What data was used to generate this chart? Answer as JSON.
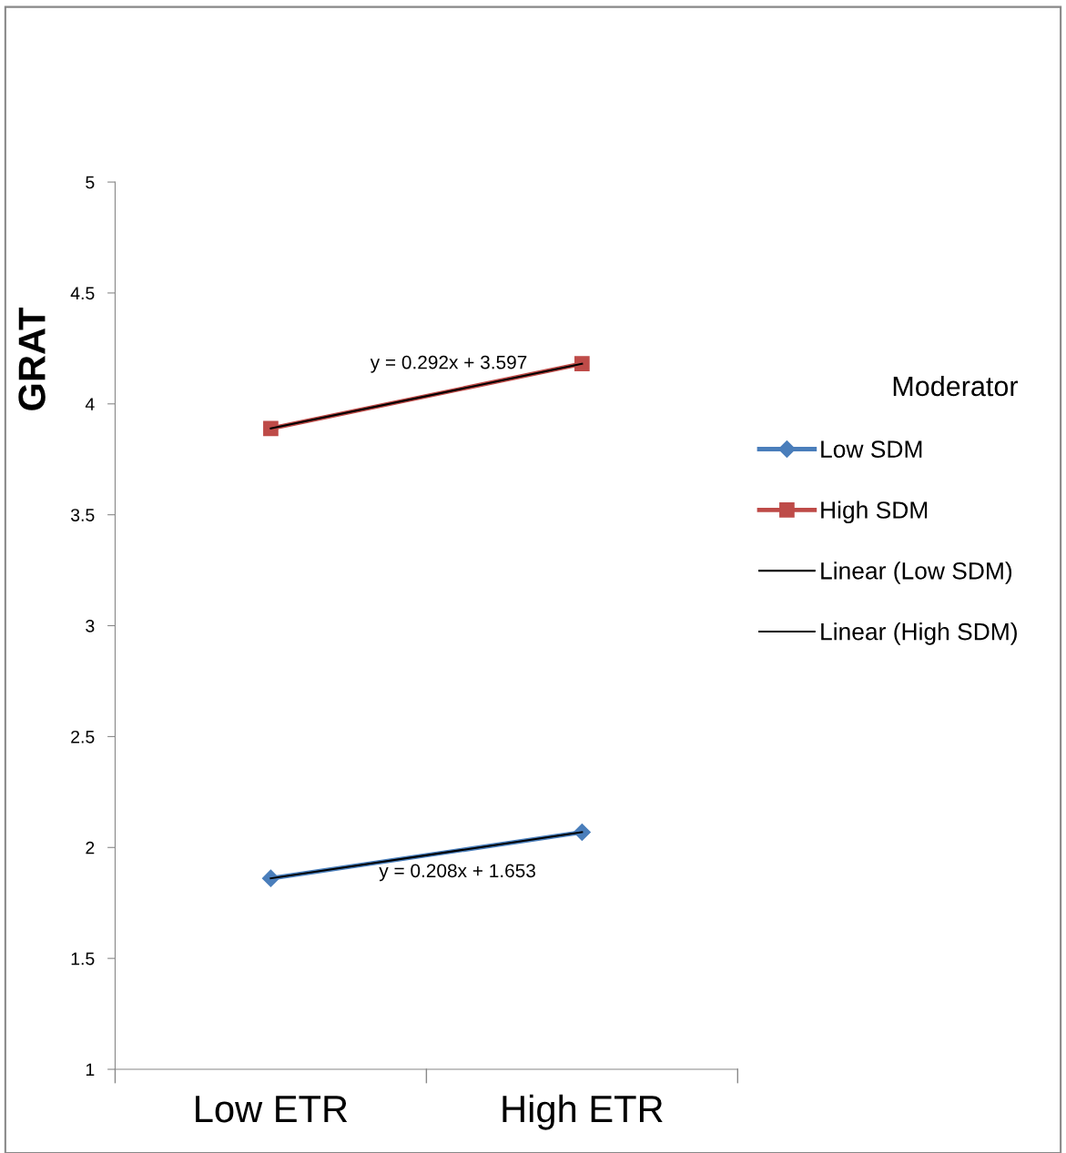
{
  "chart_data": {
    "type": "line",
    "ylabel": "GRAT",
    "categories": [
      "Low ETR",
      "High ETR"
    ],
    "series": [
      {
        "name": "Low SDM",
        "color": "#4a7ebb",
        "values": [
          1.861,
          2.069
        ],
        "marker": "diamond"
      },
      {
        "name": "High SDM",
        "color": "#be4b48",
        "values": [
          3.889,
          4.181
        ],
        "marker": "square"
      },
      {
        "name": "Linear (Low SDM)",
        "color": "#000000",
        "values": [
          1.861,
          2.069
        ],
        "marker": "none"
      },
      {
        "name": "Linear (High SDM)",
        "color": "#000000",
        "values": [
          3.889,
          4.181
        ],
        "marker": "none"
      }
    ],
    "ylim": [
      1,
      5
    ],
    "yticks": [
      1,
      1.5,
      2,
      2.5,
      3,
      3.5,
      4,
      4.5,
      5
    ],
    "annotations": [
      "y = 0.292x + 3.597",
      "y = 0.208x + 1.653"
    ],
    "legend": "right",
    "legend_title": "Moderator",
    "grid": false
  }
}
